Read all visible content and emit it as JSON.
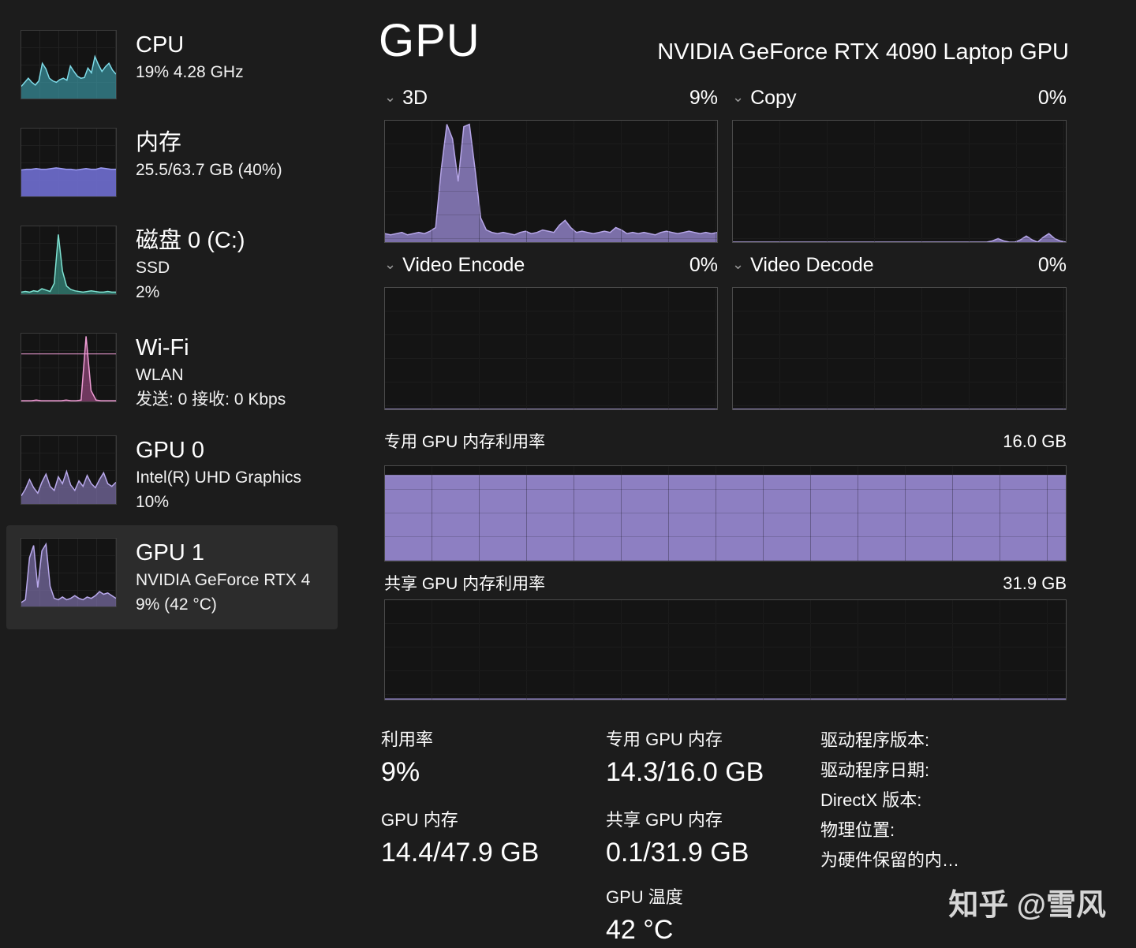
{
  "sidebar": {
    "items": [
      {
        "title": "CPU",
        "line2": "19%  4.28 GHz",
        "line3": ""
      },
      {
        "title": "内存",
        "line2": "25.5/63.7 GB (40%)",
        "line3": ""
      },
      {
        "title": "磁盘 0 (C:)",
        "line2": "SSD",
        "line3": "2%"
      },
      {
        "title": "Wi-Fi",
        "line2": "WLAN",
        "line3": "发送: 0  接收: 0 Kbps"
      },
      {
        "title": "GPU 0",
        "line2": "Intel(R) UHD Graphics",
        "line3": "10%"
      },
      {
        "title": "GPU 1",
        "line2": "NVIDIA GeForce RTX 4",
        "line3": "9% (42 °C)"
      }
    ]
  },
  "header": {
    "title": "GPU",
    "subtitle": "NVIDIA GeForce RTX 4090 Laptop GPU"
  },
  "engine_charts": [
    {
      "label": "3D",
      "value": "9%"
    },
    {
      "label": "Copy",
      "value": "0%"
    },
    {
      "label": "Video Encode",
      "value": "0%"
    },
    {
      "label": "Video Decode",
      "value": "0%"
    }
  ],
  "memory_charts": {
    "dedicated": {
      "label": "专用 GPU 内存利用率",
      "max": "16.0 GB"
    },
    "shared": {
      "label": "共享 GPU 内存利用率",
      "max": "31.9 GB"
    }
  },
  "stats": {
    "utilization": {
      "label": "利用率",
      "value": "9%"
    },
    "gpu_memory": {
      "label": "GPU 内存",
      "value": "14.4/47.9 GB"
    },
    "dedicated_memory": {
      "label": "专用 GPU 内存",
      "value": "14.3/16.0 GB"
    },
    "shared_memory": {
      "label": "共享 GPU 内存",
      "value": "0.1/31.9 GB"
    },
    "temperature": {
      "label": "GPU 温度",
      "value": "42 °C"
    }
  },
  "info": {
    "lines": [
      "驱动程序版本:",
      "驱动程序日期:",
      "DirectX 版本:",
      "物理位置:",
      "为硬件保留的内…"
    ]
  },
  "watermark": "知乎 @雪风",
  "colors": {
    "gpu_purple": "#8d7fc2",
    "cpu_teal": "#3fa9b8",
    "memory_violet": "#6f6ed0",
    "disk_green": "#3fae9e",
    "wifi_pink": "#c95ba8"
  },
  "chart_data": {
    "cpu_thumb": {
      "type": "area",
      "color": "#3fa9b8",
      "line": "#7fdbe8",
      "fill_opacity": 0.6,
      "ymax": 100,
      "values": [
        18,
        24,
        30,
        24,
        20,
        26,
        52,
        44,
        30,
        26,
        24,
        28,
        30,
        27,
        48,
        40,
        33,
        30,
        31,
        45,
        38,
        62,
        50,
        40,
        47,
        52,
        42,
        36
      ]
    },
    "memory_thumb": {
      "type": "area",
      "color": "#6f6ed0",
      "line": "#9b9af0",
      "fill_opacity": 0.9,
      "ymax": 100,
      "values": [
        39,
        40,
        40,
        41,
        40,
        40,
        41,
        42,
        41,
        40,
        40,
        39,
        40,
        41,
        40,
        40,
        42,
        41,
        40,
        40
      ]
    },
    "disk_thumb": {
      "type": "area",
      "color": "#3fae9e",
      "line": "#7fe2d2",
      "fill_opacity": 0.55,
      "ymax": 100,
      "values": [
        3,
        4,
        3,
        5,
        4,
        8,
        6,
        4,
        16,
        88,
        34,
        12,
        7,
        5,
        4,
        3,
        4,
        5,
        4,
        3,
        3,
        4,
        3,
        3
      ]
    },
    "wifi_thumb": {
      "type": "area",
      "color": "#c95ba8",
      "line": "#ee9cd4",
      "fill_opacity": 0.5,
      "ymax": 100,
      "hline": 70,
      "values": [
        1,
        1,
        1,
        2,
        1,
        1,
        1,
        1,
        1,
        2,
        1,
        1,
        2,
        96,
        16,
        2,
        1,
        1,
        1,
        1
      ]
    },
    "gpu0_thumb": {
      "type": "area",
      "color": "#8d7fc2",
      "line": "#b9a9ec",
      "fill_opacity": 0.6,
      "ymax": 100,
      "values": [
        12,
        22,
        36,
        24,
        16,
        32,
        44,
        26,
        20,
        40,
        30,
        48,
        28,
        20,
        34,
        26,
        42,
        30,
        24,
        36,
        46,
        30,
        26,
        32
      ]
    },
    "gpu1_thumb": {
      "type": "area",
      "color": "#8d7fc2",
      "line": "#b9a9ec",
      "fill_opacity": 0.6,
      "ymax": 100,
      "values": [
        6,
        10,
        72,
        90,
        28,
        82,
        92,
        30,
        12,
        10,
        14,
        10,
        12,
        16,
        12,
        10,
        14,
        12,
        16,
        22,
        18,
        20,
        16,
        12
      ]
    },
    "gpu_3d": {
      "type": "area",
      "title": "3D",
      "unit": "%",
      "ymax": 100,
      "color": "#8d7fc2",
      "line": "#b6a6e8",
      "fill_opacity": 0.85,
      "values": [
        7,
        6,
        7,
        8,
        6,
        7,
        8,
        7,
        9,
        12,
        60,
        97,
        85,
        50,
        95,
        97,
        60,
        20,
        10,
        8,
        7,
        8,
        7,
        6,
        8,
        9,
        7,
        8,
        10,
        9,
        8,
        14,
        18,
        12,
        8,
        9,
        8,
        7,
        8,
        9,
        8,
        12,
        10,
        7,
        8,
        7,
        8,
        7,
        6,
        8,
        9,
        8,
        7,
        8,
        9,
        8,
        7,
        8,
        7,
        8
      ]
    },
    "gpu_copy": {
      "type": "area",
      "title": "Copy",
      "unit": "%",
      "ymax": 100,
      "color": "#8d7fc2",
      "line": "#b6a6e8",
      "fill_opacity": 0.85,
      "values": [
        0,
        0,
        0,
        0,
        0,
        0,
        0,
        0,
        0,
        0,
        0,
        0,
        0,
        0,
        0,
        0,
        0,
        0,
        0,
        0,
        0,
        0,
        0,
        0,
        0,
        0,
        0,
        0,
        0,
        0,
        0,
        0,
        0,
        0,
        0,
        0,
        0,
        0,
        0,
        0,
        0,
        0,
        0,
        0,
        0,
        0,
        1,
        3,
        1,
        0,
        0,
        2,
        5,
        2,
        0,
        4,
        7,
        3,
        1,
        0
      ]
    },
    "gpu_video_encode": {
      "type": "area",
      "title": "Video Encode",
      "unit": "%",
      "ymax": 100,
      "color": "#8d7fc2",
      "line": "#b6a6e8",
      "fill_opacity": 0.85,
      "values": [
        0,
        0
      ]
    },
    "gpu_video_decode": {
      "type": "area",
      "title": "Video Decode",
      "unit": "%",
      "ymax": 100,
      "color": "#8d7fc2",
      "line": "#b6a6e8",
      "fill_opacity": 0.85,
      "values": [
        0,
        0
      ]
    },
    "dedicated_memory_usage": {
      "type": "area",
      "title": "专用 GPU 内存利用率",
      "ymax_label": "16.0 GB",
      "color": "#8d7fc2",
      "line": "#a294d6",
      "fill_opacity": 1,
      "ymax": 100,
      "values": [
        90,
        90
      ]
    },
    "shared_memory_usage": {
      "type": "area",
      "title": "共享 GPU 内存利用率",
      "ymax_label": "31.9 GB",
      "color": "#8d7fc2",
      "line": "#8d7fc2",
      "fill_opacity": 0.85,
      "ymax": 100,
      "values": [
        0.6,
        0.6
      ]
    }
  }
}
